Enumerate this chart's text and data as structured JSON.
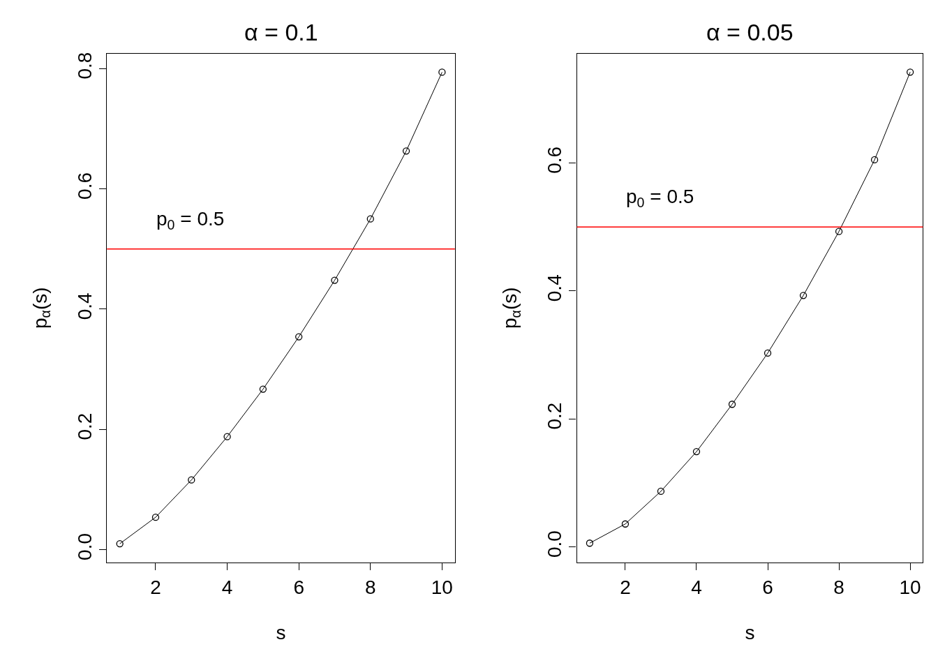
{
  "chart_data": [
    {
      "type": "line",
      "title": "α = 0.1",
      "xlabel": "s",
      "ylabel": "p$_{α}$(s)",
      "x": [
        1,
        2,
        3,
        4,
        5,
        6,
        7,
        8,
        9,
        10
      ],
      "series": [
        {
          "color": "#000000",
          "values": [
            0.01,
            0.054,
            0.116,
            0.188,
            0.267,
            0.354,
            0.448,
            0.55,
            0.663,
            0.794
          ]
        }
      ],
      "marker": "circle",
      "line_style": "solid",
      "grid": false,
      "xlim": [
        0.64,
        10.36
      ],
      "xticks": [
        2,
        4,
        6,
        8,
        10
      ],
      "ylim": [
        -0.021,
        0.825
      ],
      "yticks": [
        {
          "value": 0,
          "label": "0.0"
        },
        0.2,
        0.4,
        0.6,
        0.8
      ],
      "ref_lines": [
        {
          "axis": "y",
          "value": 0.5,
          "color": "#ff0000",
          "label": "p$_{0}$ = 0.5"
        }
      ]
    },
    {
      "type": "line",
      "title": "α = 0.05",
      "xlabel": "s",
      "ylabel": "p$_{α}$(s)",
      "x": [
        1,
        2,
        3,
        4,
        5,
        6,
        7,
        8,
        9,
        10
      ],
      "series": [
        {
          "color": "#000000",
          "values": [
            0.006,
            0.036,
            0.087,
            0.149,
            0.223,
            0.303,
            0.393,
            0.493,
            0.605,
            0.742
          ]
        }
      ],
      "marker": "circle",
      "line_style": "solid",
      "grid": false,
      "xlim": [
        0.64,
        10.36
      ],
      "xticks": [
        2,
        4,
        6,
        8,
        10
      ],
      "ylim": [
        -0.024,
        0.771
      ],
      "yticks": [
        {
          "value": 0,
          "label": "0.0"
        },
        0.2,
        0.4,
        0.6
      ],
      "ref_lines": [
        {
          "axis": "y",
          "value": 0.5,
          "color": "#ff0000",
          "label": "p$_{0}$ = 0.5"
        }
      ]
    }
  ]
}
